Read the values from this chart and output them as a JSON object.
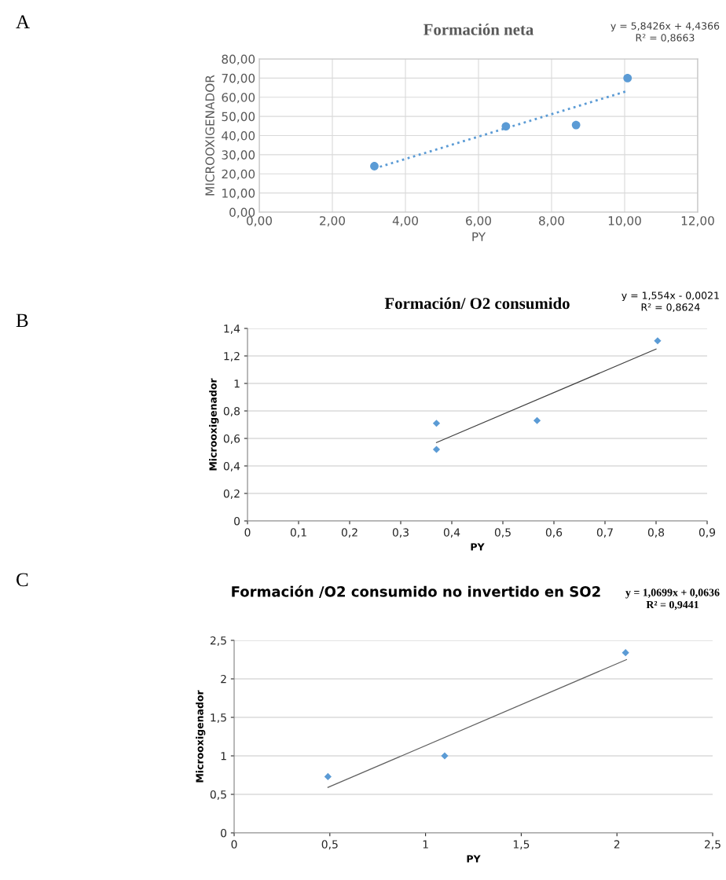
{
  "chart_data": [
    {
      "type": "scatter",
      "title": "Formación neta",
      "xlabel": "PY",
      "ylabel": "MICROOXIGENADOR",
      "annotations": [
        "A",
        "y = 5,8426x + 4,4366",
        "R² = 0,8663"
      ],
      "x": [
        3.15,
        6.75,
        8.67,
        10.08
      ],
      "series": [
        {
          "color": "#5b9bd5",
          "marker": "circle",
          "values": [
            24.0,
            44.8,
            45.5,
            70.0
          ]
        },
        {
          "type": "line",
          "color": "#5b9bd5",
          "line_style": "dotted",
          "marker": "none",
          "x": [
            3.15,
            10.08
          ],
          "values": [
            22.8,
            63.3
          ]
        }
      ],
      "xlim": [
        0,
        12
      ],
      "ylim": [
        0,
        80
      ],
      "xticks": [
        {
          "value": 0,
          "label": "0,00"
        },
        {
          "value": 2,
          "label": "2,00"
        },
        {
          "value": 4,
          "label": "4,00"
        },
        {
          "value": 6,
          "label": "6,00"
        },
        {
          "value": 8,
          "label": "8,00"
        },
        {
          "value": 10,
          "label": "10,00"
        },
        {
          "value": 12,
          "label": "12,00"
        }
      ],
      "yticks": [
        {
          "value": 0,
          "label": "0,00"
        },
        {
          "value": 10,
          "label": "10,00"
        },
        {
          "value": 20,
          "label": "20,00"
        },
        {
          "value": 30,
          "label": "30,00"
        },
        {
          "value": 40,
          "label": "40,00"
        },
        {
          "value": 50,
          "label": "50,00"
        },
        {
          "value": 60,
          "label": "60,00"
        },
        {
          "value": 70,
          "label": "70,00"
        },
        {
          "value": 80,
          "label": "80,00"
        }
      ],
      "grid": true,
      "legend": false
    },
    {
      "type": "scatter",
      "title": "Formación/ O2 consumido",
      "xlabel": "PY",
      "ylabel": "Microoxigenador",
      "annotations": [
        "B",
        "y = 1,554x - 0,0021",
        "R² = 0,8624"
      ],
      "x": [
        0.37,
        0.37,
        0.567,
        0.803
      ],
      "series": [
        {
          "color": "#5b9bd5",
          "marker": "diamond",
          "values": [
            0.71,
            0.52,
            0.73,
            1.31
          ]
        },
        {
          "type": "line",
          "color": "#404040",
          "line_style": "solid",
          "marker": "none",
          "x": [
            0.37,
            0.8
          ],
          "values": [
            0.57,
            1.25
          ]
        }
      ],
      "xlim": [
        0,
        0.9
      ],
      "ylim": [
        0,
        1.4
      ],
      "xticks": [
        0,
        {
          "value": 0.1,
          "label": "0,1"
        },
        {
          "value": 0.2,
          "label": "0,2"
        },
        {
          "value": 0.3,
          "label": "0,3"
        },
        {
          "value": 0.4,
          "label": "0,4"
        },
        {
          "value": 0.5,
          "label": "0,5"
        },
        {
          "value": 0.6,
          "label": "0,6"
        },
        {
          "value": 0.7,
          "label": "0,7"
        },
        {
          "value": 0.8,
          "label": "0,8"
        },
        {
          "value": 0.9,
          "label": "0,9"
        }
      ],
      "yticks": [
        0,
        {
          "value": 0.2,
          "label": "0,2"
        },
        {
          "value": 0.4,
          "label": "0,4"
        },
        {
          "value": 0.6,
          "label": "0,6"
        },
        {
          "value": 0.8,
          "label": "0,8"
        },
        1,
        {
          "value": 1.2,
          "label": "1,2"
        },
        {
          "value": 1.4,
          "label": "1,4"
        }
      ],
      "grid": "y",
      "legend": false
    },
    {
      "type": "scatter",
      "title": "Formación /O2 consumido no invertido en SO2",
      "xlabel": "PY",
      "ylabel": "Microoxigenador",
      "annotations": [
        "C",
        "y = 1,0699x + 0,0636",
        "R² = 0,9441"
      ],
      "x": [
        0.49,
        1.1,
        2.045
      ],
      "series": [
        {
          "color": "#5b9bd5",
          "marker": "diamond",
          "values": [
            0.73,
            1.0,
            2.34
          ]
        },
        {
          "type": "line",
          "color": "#606060",
          "line_style": "solid",
          "marker": "none",
          "x": [
            0.49,
            2.05
          ],
          "values": [
            0.59,
            2.25
          ]
        }
      ],
      "xlim": [
        0,
        2.5
      ],
      "ylim": [
        0,
        2.5
      ],
      "xticks": [
        0,
        {
          "value": 0.5,
          "label": "0,5"
        },
        1,
        {
          "value": 1.5,
          "label": "1,5"
        },
        2,
        {
          "value": 2.5,
          "label": "2,5"
        }
      ],
      "yticks": [
        0,
        {
          "value": 0.5,
          "label": "0,5"
        },
        1,
        {
          "value": 1.5,
          "label": "1,5"
        },
        2,
        {
          "value": 2.5,
          "label": "2,5"
        }
      ],
      "grid": "y",
      "legend": false
    }
  ]
}
